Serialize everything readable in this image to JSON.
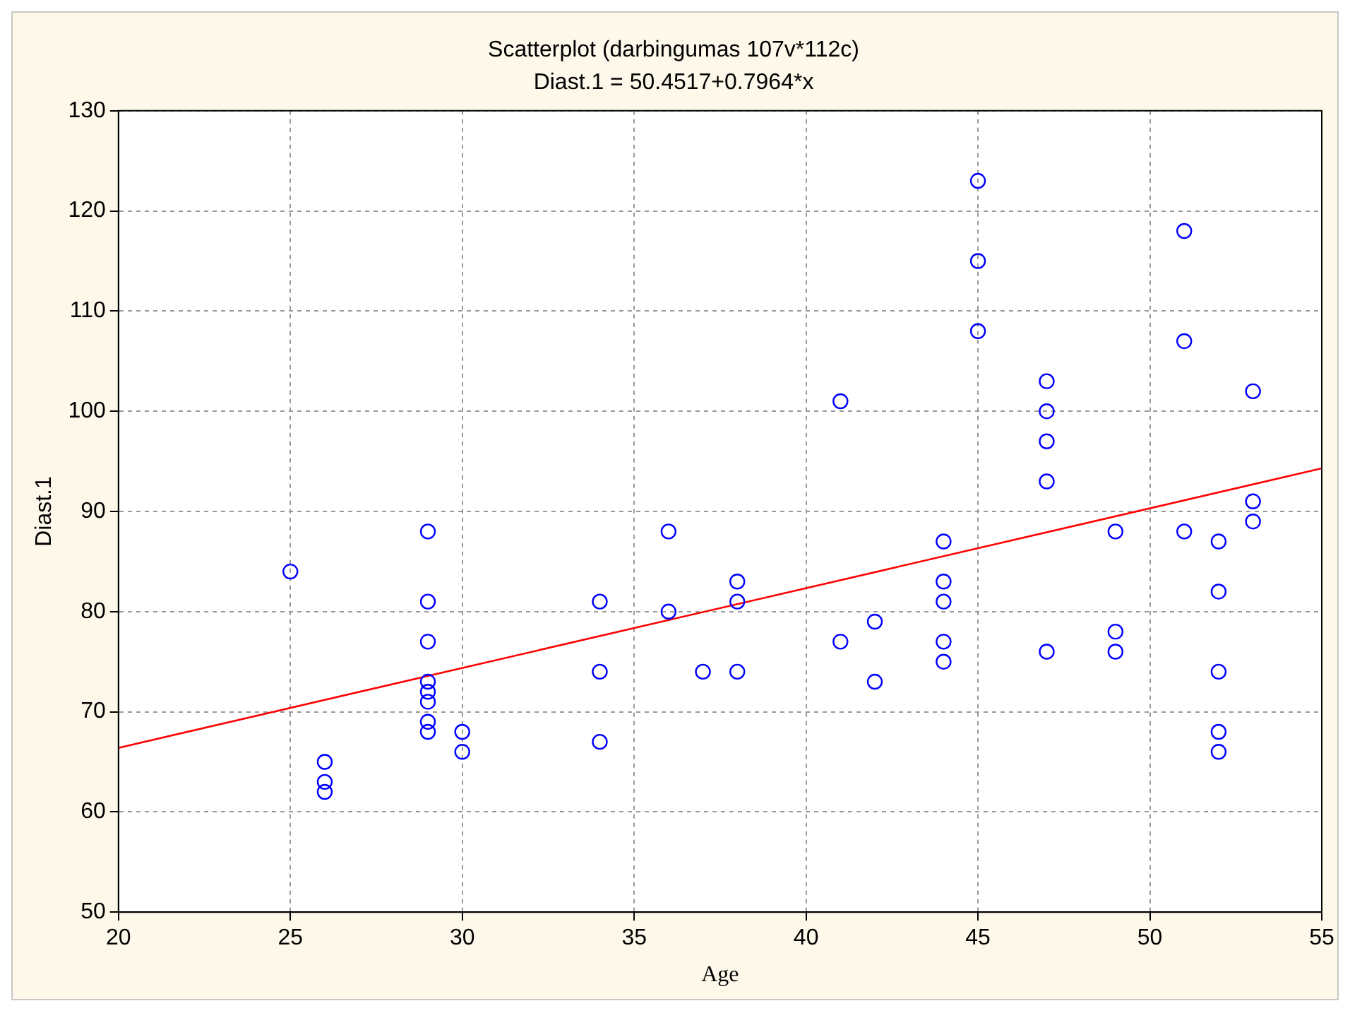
{
  "chart_data": {
    "type": "scatter",
    "title": "Scatterplot (darbingumas 107v*112c)",
    "subtitle": "Diast.1 = 50.4517+0.7964*x",
    "xlabel": "Age",
    "ylabel": "Diast.1",
    "xlim": [
      20,
      55
    ],
    "xticks": [
      20,
      25,
      30,
      35,
      40,
      45,
      50,
      55
    ],
    "ylim": [
      50,
      130
    ],
    "yticks": [
      50,
      60,
      70,
      80,
      90,
      100,
      110,
      120,
      130
    ],
    "grid": true,
    "legend": false,
    "series": [
      {
        "marker": "circle",
        "color": "#0000ff",
        "x": [
          25,
          26,
          26,
          26,
          29,
          29,
          29,
          29,
          29,
          29,
          29,
          29,
          30,
          30,
          34,
          34,
          34,
          36,
          36,
          37,
          38,
          38,
          38,
          41,
          41,
          42,
          42,
          44,
          44,
          44,
          44,
          44,
          45,
          45,
          45,
          47,
          47,
          47,
          47,
          47,
          49,
          49,
          49,
          51,
          51,
          51,
          52,
          52,
          52,
          52,
          52,
          53,
          53,
          53
        ],
        "values": [
          84,
          65,
          63,
          62,
          88,
          81,
          77,
          73,
          72,
          71,
          69,
          68,
          68,
          66,
          81,
          74,
          67,
          88,
          80,
          74,
          83,
          81,
          74,
          101,
          77,
          79,
          73,
          87,
          83,
          81,
          77,
          75,
          123,
          115,
          108,
          103,
          100,
          97,
          93,
          76,
          88,
          78,
          76,
          118,
          107,
          88,
          87,
          82,
          74,
          68,
          66,
          102,
          91,
          89
        ]
      },
      {
        "type": "line",
        "color": "#ff0000",
        "x": [
          20,
          55
        ],
        "values": [
          66.4,
          94.3
        ],
        "marker": "none"
      }
    ]
  }
}
